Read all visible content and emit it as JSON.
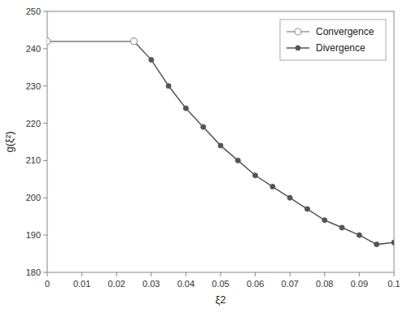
{
  "chart_data": {
    "type": "line",
    "xlabel": "ξ2",
    "ylabel": "g(ξ²)",
    "series": [
      {
        "name": "Convergence",
        "color": "#999999",
        "marker": "open-circle",
        "x": [
          0.0,
          0.025
        ],
        "values": [
          242.0,
          242.0
        ]
      },
      {
        "name": "Divergence",
        "color": "#555555",
        "marker": "circle",
        "x": [
          0.0,
          0.025,
          0.03,
          0.035,
          0.04,
          0.045,
          0.05,
          0.055,
          0.06,
          0.065,
          0.07,
          0.075,
          0.08,
          0.085,
          0.09,
          0.095,
          0.1
        ],
        "values": [
          242.0,
          242.0,
          237.0,
          230.0,
          224.0,
          219.0,
          214.0,
          210.0,
          206.0,
          203.0,
          200.0,
          197.0,
          194.0,
          192.0,
          190.0,
          187.5,
          188.0
        ]
      }
    ],
    "xlim": [
      0,
      0.1
    ],
    "ylim": [
      180,
      250
    ],
    "xticks": [
      0,
      0.01,
      0.02,
      0.03,
      0.04,
      0.05,
      0.06,
      0.07,
      0.08,
      0.09,
      0.1
    ],
    "yticks": [
      180,
      190,
      200,
      210,
      220,
      230,
      240,
      250
    ],
    "grid": false,
    "legend": "upper right"
  }
}
